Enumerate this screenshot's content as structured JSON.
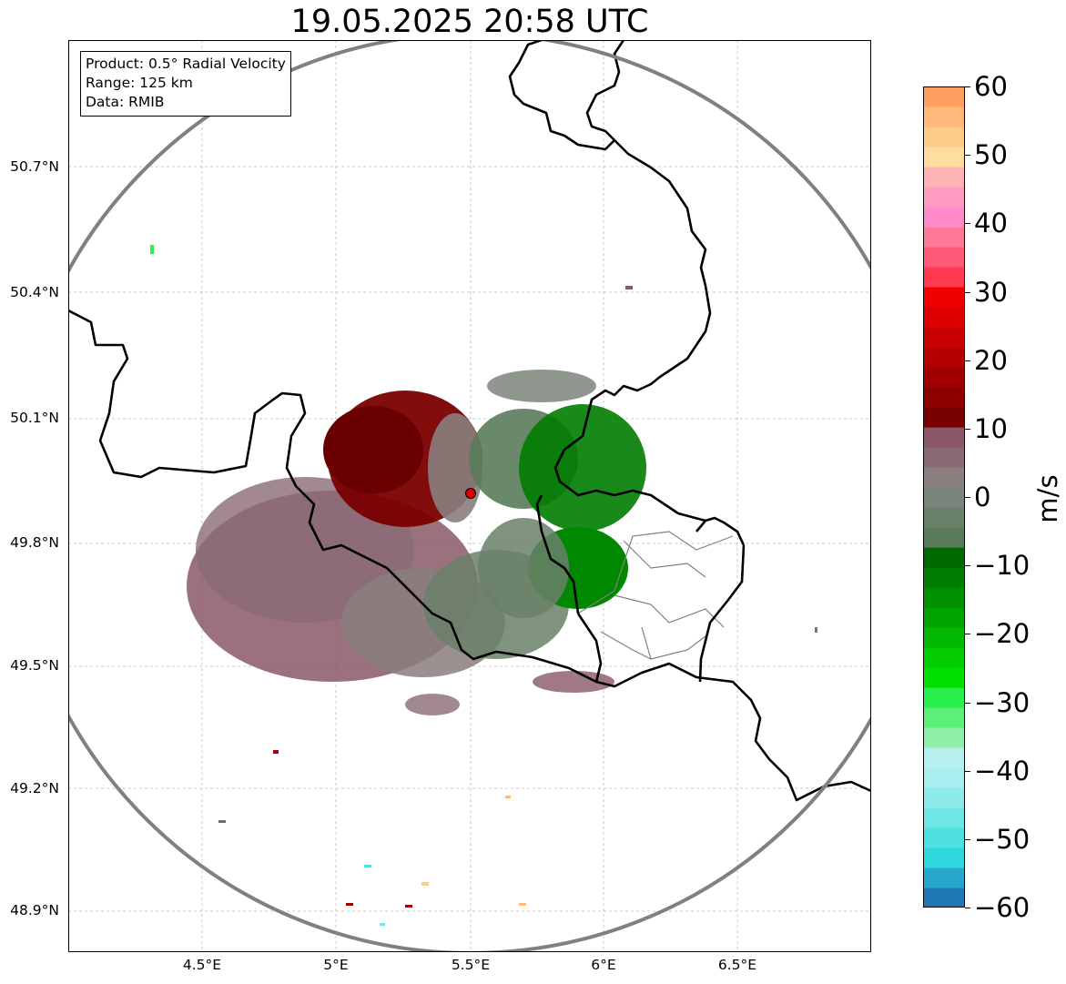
{
  "title": "19.05.2025 20:58 UTC",
  "info": {
    "product": "Product: 0.5° Radial Velocity",
    "range": "Range: 125 km",
    "data": "Data: RMIB"
  },
  "axes": {
    "lat_ticks": [
      "50.7°N",
      "50.4°N",
      "50.1°N",
      "49.8°N",
      "49.5°N",
      "49.2°N",
      "48.9°N"
    ],
    "lon_ticks": [
      "4.5°E",
      "5°E",
      "5.5°E",
      "6°E",
      "6.5°E"
    ]
  },
  "colorbar": {
    "unit": "m/s",
    "ticks": [
      "60",
      "50",
      "40",
      "30",
      "20",
      "10",
      "0",
      "−10",
      "−20",
      "−30",
      "−40",
      "−50",
      "−60"
    ],
    "range": [
      -60,
      60
    ],
    "colors": [
      "#1f78b4",
      "#27a6cc",
      "#2ed8dc",
      "#4fe0e0",
      "#6fe6e6",
      "#8feaea",
      "#a8eeee",
      "#b8f0f0",
      "#8ef0a8",
      "#5cf07a",
      "#29f04d",
      "#00e000",
      "#00cc00",
      "#00b800",
      "#00a400",
      "#009000",
      "#007c00",
      "#006800",
      "#5a7c5a",
      "#6a8068",
      "#7a847a",
      "#8a7e7e",
      "#8a6a76",
      "#8a5866",
      "#7a0000",
      "#8c0000",
      "#a00000",
      "#b40000",
      "#c80000",
      "#dc0000",
      "#f00000",
      "#ff3a50",
      "#ff5a78",
      "#ff7896",
      "#ff8cc8",
      "#ff9ac0",
      "#ffb4b4",
      "#ffdca0",
      "#ffcc88",
      "#ffb87a",
      "#ffa060"
    ]
  },
  "radar": {
    "site": "radar-site-marker",
    "site_color": "#e00000",
    "range_ring_color": "#808080"
  }
}
